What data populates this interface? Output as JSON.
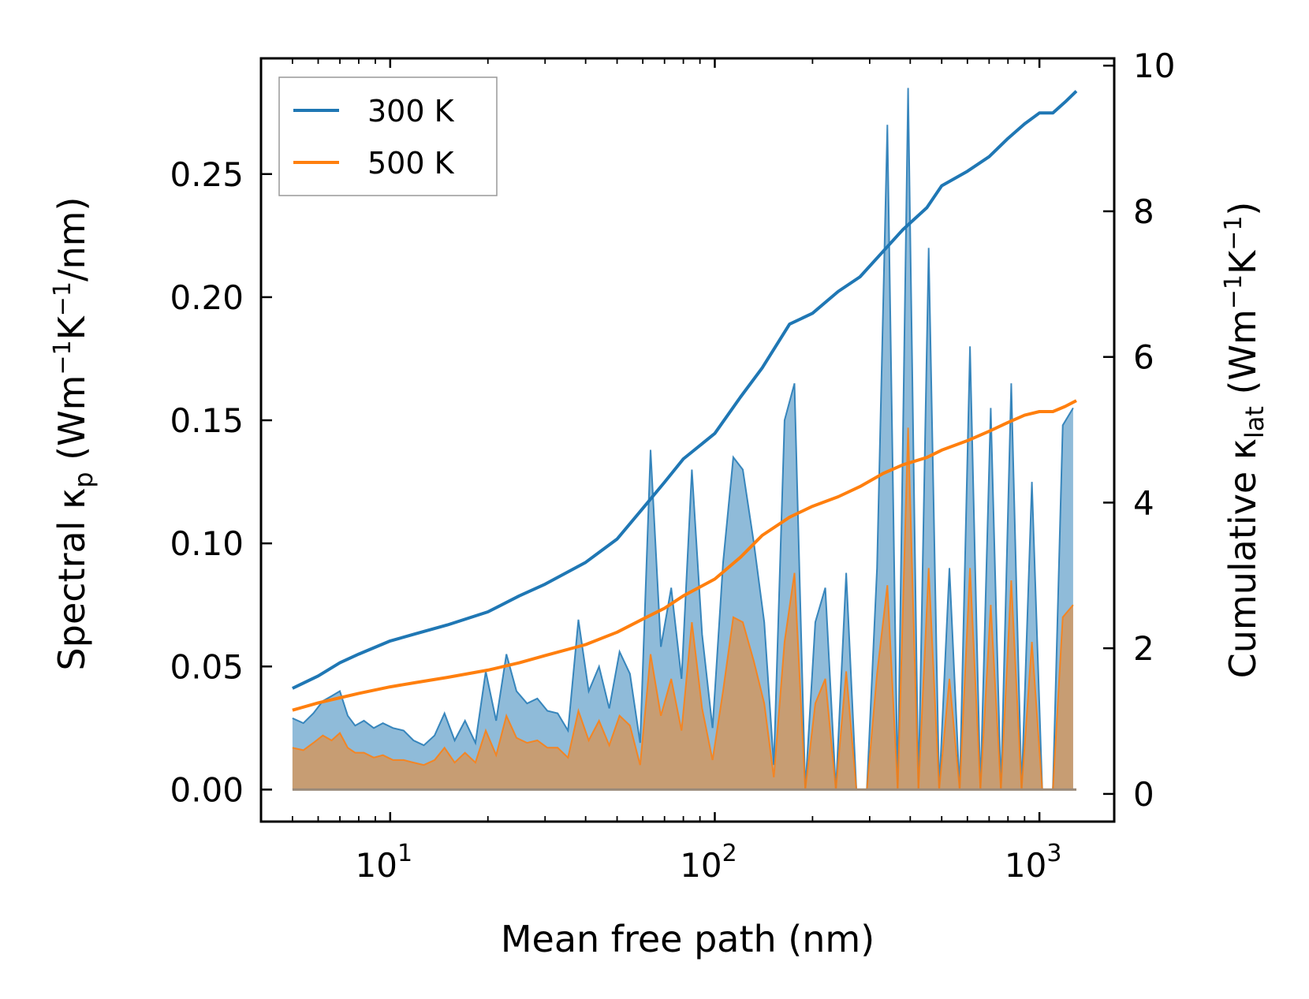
{
  "chart_data": {
    "type": "line",
    "xlabel": "Mean free path (nm)",
    "ylabel_left": {
      "prefix": "Spectral κ",
      "sub": "p",
      "units_pre": " (Wm",
      "sup1": "−1",
      "units_mid": "K",
      "sup2": "−1",
      "units_post": "/nm)"
    },
    "ylabel_right": {
      "prefix": "Cumulative κ",
      "sub": "lat",
      "units_pre": " (Wm",
      "sup1": "−1",
      "units_mid": "K",
      "sup2": "−1",
      "units_post": ")"
    },
    "x_scale": "log",
    "xlim": [
      4,
      1700
    ],
    "ylim_left": [
      -0.013,
      0.297
    ],
    "ylim_right": [
      -0.38,
      10.1
    ],
    "x_ticks": [
      {
        "value": 10,
        "base": "10",
        "exp": "1"
      },
      {
        "value": 100,
        "base": "10",
        "exp": "2"
      },
      {
        "value": 1000,
        "base": "10",
        "exp": "3"
      }
    ],
    "y_ticks_left": [
      {
        "value": 0.0,
        "label": "0.00"
      },
      {
        "value": 0.05,
        "label": "0.05"
      },
      {
        "value": 0.1,
        "label": "0.10"
      },
      {
        "value": 0.15,
        "label": "0.15"
      },
      {
        "value": 0.2,
        "label": "0.20"
      },
      {
        "value": 0.25,
        "label": "0.25"
      }
    ],
    "y_ticks_right": [
      {
        "value": 0,
        "label": "0"
      },
      {
        "value": 2,
        "label": "2"
      },
      {
        "value": 4,
        "label": "4"
      },
      {
        "value": 6,
        "label": "6"
      },
      {
        "value": 8,
        "label": "8"
      },
      {
        "value": 10,
        "label": "10"
      }
    ],
    "legend": {
      "placement": "top-left",
      "entries": [
        {
          "label": "300 K",
          "color": "#1f77b4"
        },
        {
          "label": "500 K",
          "color": "#ff7f0e"
        }
      ]
    },
    "series": [
      {
        "name": "300 K",
        "color": "#1f77b4",
        "spectral": {
          "x": [
            5.0,
            5.4,
            5.8,
            6.2,
            6.6,
            7.0,
            7.4,
            7.8,
            8.3,
            8.9,
            9.5,
            10.2,
            11.0,
            11.8,
            12.7,
            13.7,
            14.7,
            15.8,
            17.0,
            18.3,
            19.7,
            21.2,
            22.8,
            24.5,
            26.4,
            28.4,
            30.5,
            32.8,
            35.3,
            38.0,
            40.9,
            44.0,
            47.3,
            50.9,
            54.8,
            58.9,
            63.4,
            68.2,
            73.4,
            79.0,
            85.0,
            91.4,
            98.4,
            106,
            114,
            122,
            132,
            142,
            152,
            164,
            176,
            190,
            204,
            219,
            236,
            254,
            273,
            294,
            316,
            340,
            366,
            394,
            424,
            456,
            491,
            528,
            568,
            611,
            658,
            708,
            761,
            819,
            881,
            948,
            1020,
            1100,
            1180,
            1270
          ],
          "y": [
            0.029,
            0.027,
            0.031,
            0.036,
            0.038,
            0.04,
            0.03,
            0.026,
            0.028,
            0.025,
            0.027,
            0.025,
            0.024,
            0.02,
            0.018,
            0.022,
            0.031,
            0.02,
            0.028,
            0.019,
            0.048,
            0.028,
            0.055,
            0.04,
            0.035,
            0.037,
            0.032,
            0.031,
            0.024,
            0.069,
            0.04,
            0.05,
            0.033,
            0.056,
            0.047,
            0.019,
            0.138,
            0.058,
            0.082,
            0.045,
            0.13,
            0.063,
            0.025,
            0.092,
            0.135,
            0.13,
            0.1,
            0.068,
            0.01,
            0.15,
            0.165,
            0.0,
            0.068,
            0.082,
            0.0,
            0.088,
            0.0,
            0.0,
            0.09,
            0.27,
            0.0,
            0.285,
            0.0,
            0.22,
            0.0,
            0.09,
            0.0,
            0.18,
            0.0,
            0.155,
            0.0,
            0.165,
            0.0,
            0.125,
            0.0,
            0.0,
            0.148,
            0.155
          ]
        },
        "cumulative": {
          "x": [
            5.0,
            6.0,
            7.0,
            8.0,
            10.0,
            12.0,
            15.0,
            20.0,
            25.0,
            30.0,
            40.0,
            50.0,
            60.0,
            70.0,
            80.0,
            100,
            120,
            140,
            170,
            200,
            240,
            280,
            330,
            380,
            450,
            500,
            600,
            700,
            800,
            900,
            1000,
            1100,
            1200,
            1300
          ],
          "y": [
            1.45,
            1.62,
            1.8,
            1.92,
            2.1,
            2.2,
            2.32,
            2.5,
            2.72,
            2.88,
            3.18,
            3.5,
            3.92,
            4.28,
            4.6,
            4.95,
            5.45,
            5.85,
            6.45,
            6.6,
            6.9,
            7.1,
            7.45,
            7.75,
            8.05,
            8.35,
            8.55,
            8.75,
            9.0,
            9.2,
            9.35,
            9.35,
            9.5,
            9.65
          ]
        }
      },
      {
        "name": "500 K",
        "color": "#ff7f0e",
        "spectral": {
          "x": [
            5.0,
            5.4,
            5.8,
            6.2,
            6.6,
            7.0,
            7.4,
            7.8,
            8.3,
            8.9,
            9.5,
            10.2,
            11.0,
            11.8,
            12.7,
            13.7,
            14.7,
            15.8,
            17.0,
            18.3,
            19.7,
            21.2,
            22.8,
            24.5,
            26.4,
            28.4,
            30.5,
            32.8,
            35.3,
            38.0,
            40.9,
            44.0,
            47.3,
            50.9,
            54.8,
            58.9,
            63.4,
            68.2,
            73.4,
            79.0,
            85.0,
            91.4,
            98.4,
            106,
            114,
            122,
            132,
            142,
            152,
            164,
            176,
            190,
            204,
            219,
            236,
            254,
            273,
            294,
            316,
            340,
            366,
            394,
            424,
            456,
            491,
            528,
            568,
            611,
            658,
            708,
            761,
            819,
            881,
            948,
            1020,
            1100,
            1180,
            1270
          ],
          "y": [
            0.017,
            0.016,
            0.019,
            0.022,
            0.02,
            0.023,
            0.017,
            0.015,
            0.015,
            0.013,
            0.014,
            0.012,
            0.012,
            0.011,
            0.01,
            0.012,
            0.017,
            0.011,
            0.015,
            0.011,
            0.024,
            0.014,
            0.03,
            0.021,
            0.019,
            0.02,
            0.017,
            0.017,
            0.013,
            0.032,
            0.02,
            0.028,
            0.018,
            0.03,
            0.026,
            0.01,
            0.055,
            0.03,
            0.045,
            0.024,
            0.068,
            0.033,
            0.012,
            0.04,
            0.07,
            0.068,
            0.052,
            0.035,
            0.005,
            0.06,
            0.088,
            0.0,
            0.035,
            0.045,
            0.0,
            0.048,
            0.0,
            0.0,
            0.047,
            0.083,
            0.0,
            0.147,
            0.0,
            0.09,
            0.0,
            0.045,
            0.0,
            0.09,
            0.0,
            0.075,
            0.0,
            0.085,
            0.0,
            0.06,
            0.0,
            0.0,
            0.07,
            0.075
          ]
        },
        "cumulative": {
          "x": [
            5.0,
            6.0,
            7.0,
            8.0,
            10.0,
            12.0,
            15.0,
            20.0,
            25.0,
            30.0,
            40.0,
            50.0,
            60.0,
            70.0,
            80.0,
            100,
            120,
            140,
            170,
            200,
            240,
            280,
            330,
            380,
            450,
            500,
            600,
            700,
            800,
            900,
            1000,
            1100,
            1200,
            1300
          ],
          "y": [
            1.15,
            1.25,
            1.32,
            1.38,
            1.47,
            1.53,
            1.6,
            1.7,
            1.8,
            1.9,
            2.05,
            2.22,
            2.4,
            2.55,
            2.72,
            2.95,
            3.25,
            3.55,
            3.8,
            3.95,
            4.08,
            4.22,
            4.4,
            4.52,
            4.62,
            4.72,
            4.85,
            4.98,
            5.1,
            5.2,
            5.25,
            5.25,
            5.32,
            5.4
          ]
        }
      }
    ]
  }
}
